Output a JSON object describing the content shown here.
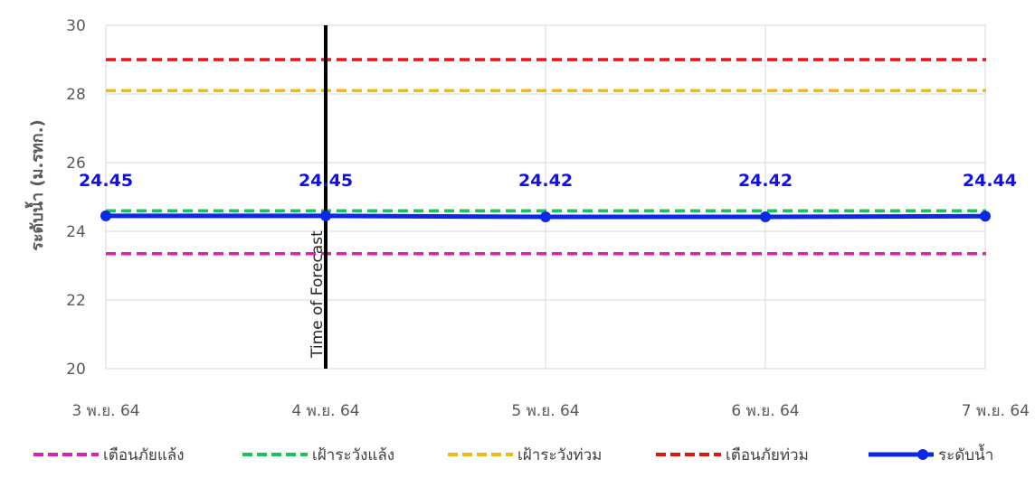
{
  "chart_data": {
    "type": "line",
    "title": "",
    "xlabel": "",
    "ylabel": "ระดับน้ำ (ม.รทก.)",
    "ylim": [
      20,
      30
    ],
    "yticks": [
      "20",
      "22",
      "24",
      "26",
      "28",
      "30"
    ],
    "categories": [
      "3 พ.ย. 64",
      "4 พ.ย. 64",
      "5 พ.ย. 64",
      "6 พ.ย. 64",
      "7 พ.ย. 64"
    ],
    "grid": true,
    "legend_position": "bottom",
    "threshold_lines": [
      {
        "name": "เตือนภัยแล้ง",
        "value": 23.35,
        "color": "#e01cb4",
        "style": "dashed"
      },
      {
        "name": "เฝ้าระวังแล้ง",
        "value": 24.6,
        "color": "#1ec25a",
        "style": "dashed"
      },
      {
        "name": "เฝ้าระวังท่วม",
        "value": 28.1,
        "color": "#f7b80e",
        "style": "dashed"
      },
      {
        "name": "เตือนภัยท่วม",
        "value": 29.0,
        "color": "#ee1111",
        "style": "dashed"
      }
    ],
    "series": [
      {
        "name": "ระดับน้ำ",
        "color": "#0a28e6",
        "values": [
          24.45,
          24.45,
          24.42,
          24.42,
          24.44
        ],
        "data_labels": [
          "24.45",
          "24.45",
          "24.42",
          "24.42",
          "24.44"
        ]
      }
    ],
    "annotation": {
      "label": "Time of Forecast",
      "category": "4 พ.ย. 64",
      "color": "#000000"
    }
  }
}
